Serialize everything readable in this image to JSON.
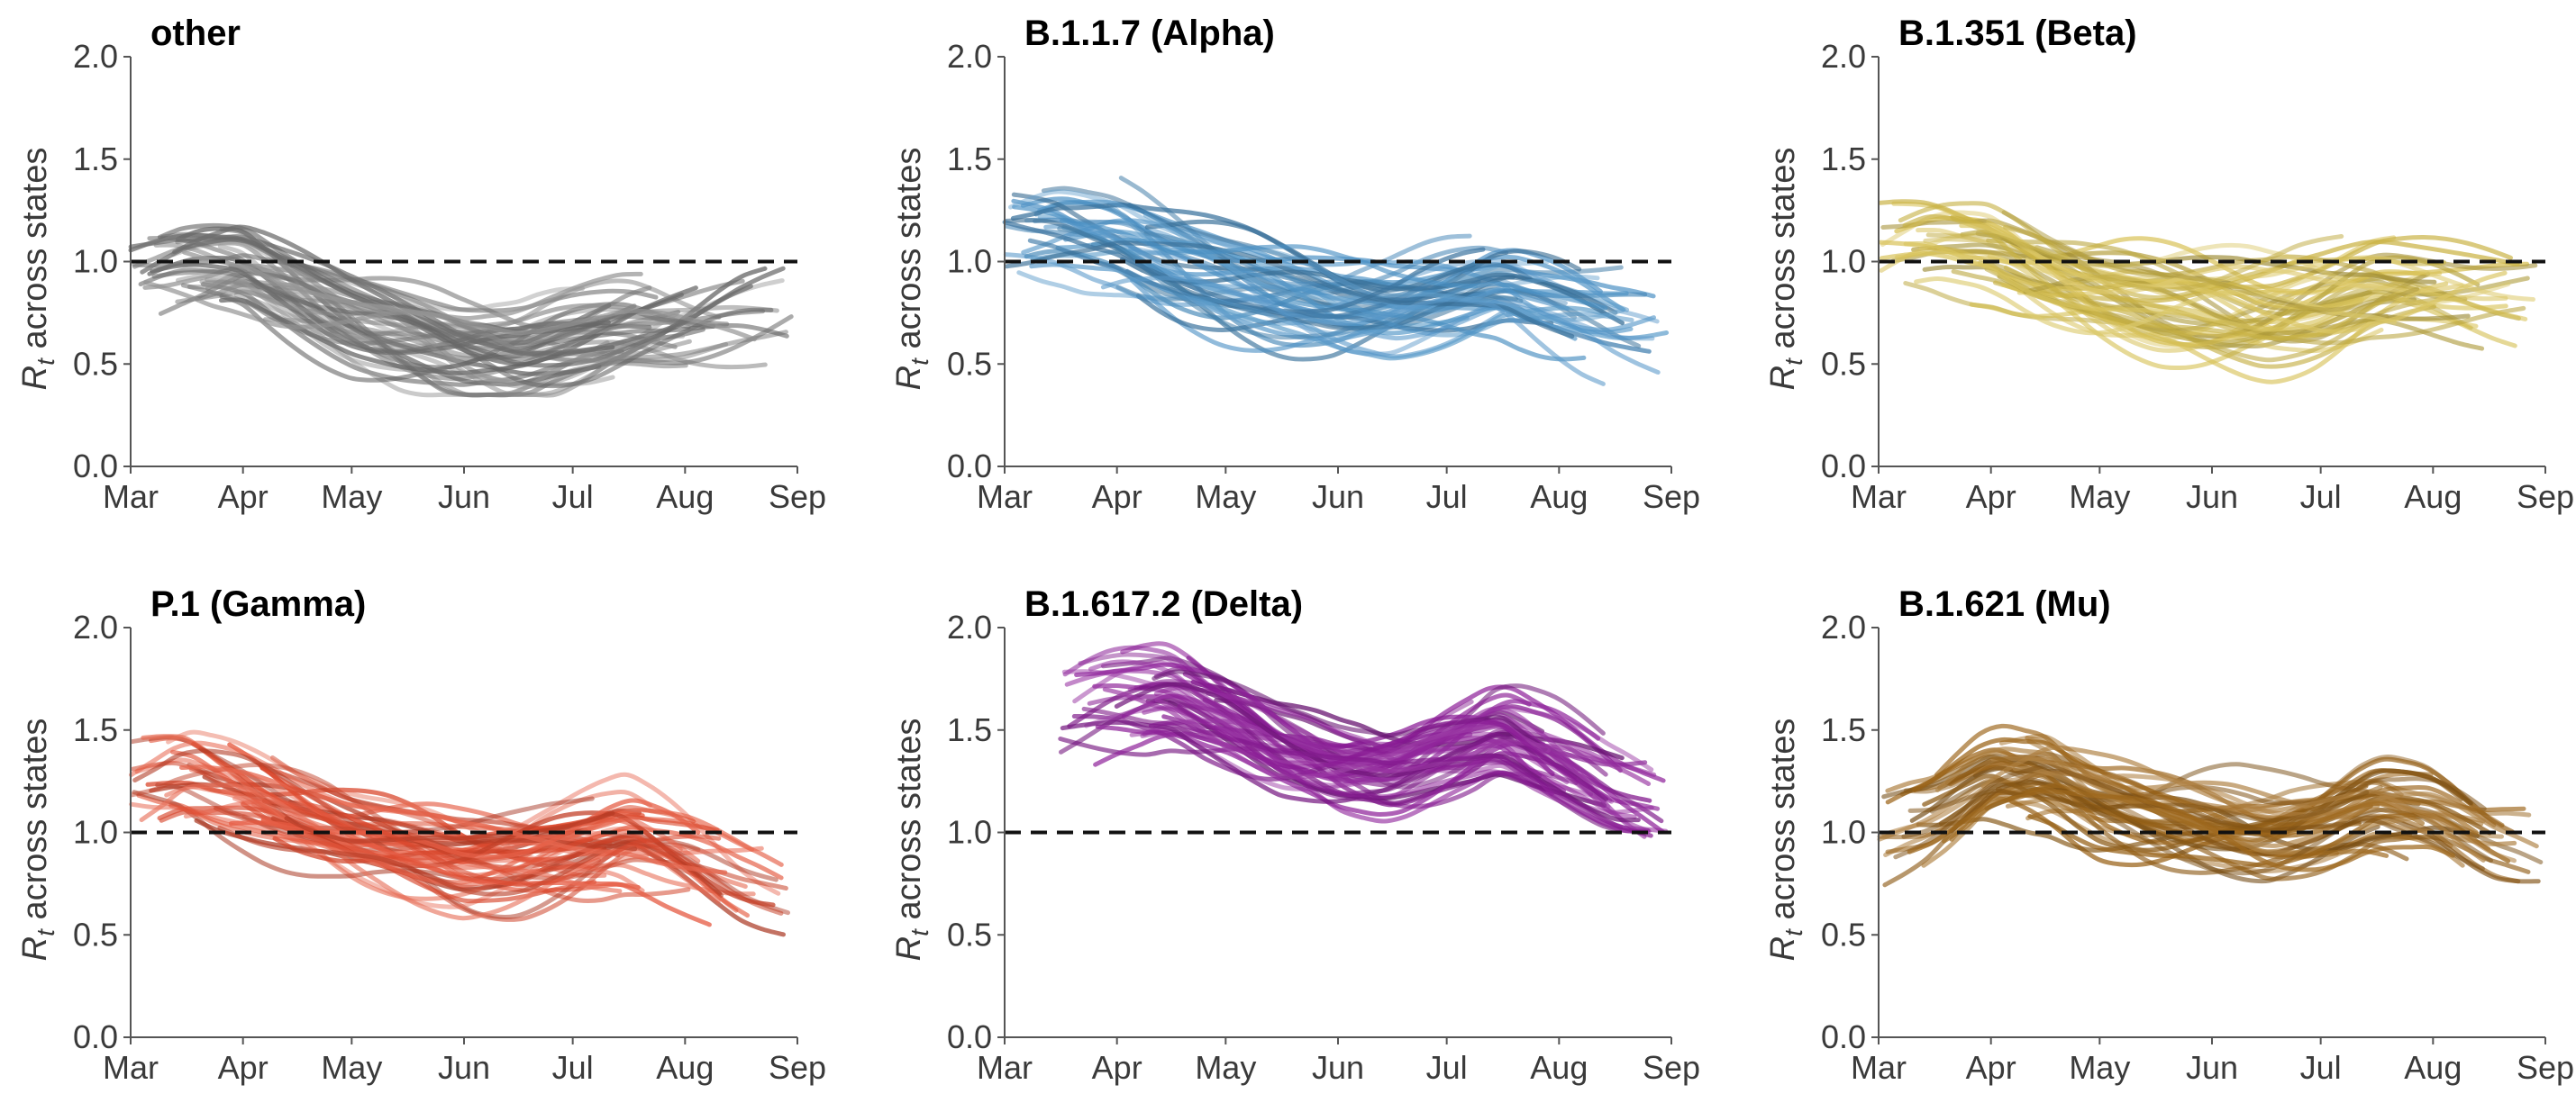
{
  "figure": {
    "ylabel_main": "R",
    "ylabel_sub": "t",
    "ylabel_rest": " across states"
  },
  "chart_data": [
    {
      "type": "line",
      "title": "other",
      "color": "#7f7f7f",
      "xlim": [
        "2021-03-01",
        "2021-09-01"
      ],
      "ylim": [
        0,
        2
      ],
      "x_tick_labels": [
        "Mar",
        "Apr",
        "May",
        "Jun",
        "Jul",
        "Aug",
        "Sep"
      ],
      "y_tick_labels": [
        "0.0",
        "0.5",
        "1.0",
        "1.5",
        "2.0"
      ],
      "reference_line": 1.0,
      "grid": false,
      "legend": "none",
      "dates": [
        "2021-03-01",
        "2021-03-16",
        "2021-04-01",
        "2021-04-16",
        "2021-05-01",
        "2021-05-16",
        "2021-06-01",
        "2021-06-16",
        "2021-07-01",
        "2021-07-16",
        "2021-08-01",
        "2021-08-16",
        "2021-09-01"
      ],
      "series_mean": [
        0.9,
        0.95,
        0.96,
        0.85,
        0.74,
        0.66,
        0.58,
        0.56,
        0.62,
        0.68,
        0.7,
        0.75,
        0.78
      ],
      "line_count": 45
    },
    {
      "type": "line",
      "title": "B.1.1.7 (Alpha)",
      "color": "#4a90c4",
      "xlim": [
        "2021-03-01",
        "2021-09-01"
      ],
      "ylim": [
        0,
        2
      ],
      "x_tick_labels": [
        "Mar",
        "Apr",
        "May",
        "Jun",
        "Jul",
        "Aug",
        "Sep"
      ],
      "y_tick_labels": [
        "0.0",
        "0.5",
        "1.0",
        "1.5",
        "2.0"
      ],
      "reference_line": 1.0,
      "grid": false,
      "legend": "none",
      "dates": [
        "2021-03-01",
        "2021-03-16",
        "2021-04-01",
        "2021-04-16",
        "2021-05-01",
        "2021-05-16",
        "2021-06-01",
        "2021-06-16",
        "2021-07-01",
        "2021-07-16",
        "2021-08-01",
        "2021-08-16",
        "2021-09-01"
      ],
      "series_mean": [
        1.12,
        1.16,
        1.12,
        1.0,
        0.9,
        0.82,
        0.76,
        0.76,
        0.82,
        0.88,
        0.8,
        0.72,
        0.68
      ],
      "line_count": 48
    },
    {
      "type": "line",
      "title": "B.1.351 (Beta)",
      "color": "#d4bc48",
      "xlim": [
        "2021-03-01",
        "2021-09-01"
      ],
      "ylim": [
        0,
        2
      ],
      "x_tick_labels": [
        "Mar",
        "Apr",
        "May",
        "Jun",
        "Jul",
        "Aug",
        "Sep"
      ],
      "y_tick_labels": [
        "0.0",
        "0.5",
        "1.0",
        "1.5",
        "2.0"
      ],
      "reference_line": 1.0,
      "grid": false,
      "legend": "none",
      "dates": [
        "2021-03-01",
        "2021-03-16",
        "2021-04-01",
        "2021-04-16",
        "2021-05-01",
        "2021-05-16",
        "2021-06-01",
        "2021-06-16",
        "2021-07-01",
        "2021-07-16",
        "2021-08-01",
        "2021-08-16",
        "2021-09-01"
      ],
      "series_mean": [
        1.02,
        1.08,
        1.06,
        0.95,
        0.86,
        0.8,
        0.76,
        0.74,
        0.78,
        0.85,
        0.85,
        0.85,
        0.85
      ],
      "line_count": 45
    },
    {
      "type": "line",
      "title": "P.1 (Gamma)",
      "color": "#e24a2e",
      "xlim": [
        "2021-03-01",
        "2021-09-01"
      ],
      "ylim": [
        0,
        2
      ],
      "x_tick_labels": [
        "Mar",
        "Apr",
        "May",
        "Jun",
        "Jul",
        "Aug",
        "Sep"
      ],
      "y_tick_labels": [
        "0.0",
        "0.5",
        "1.0",
        "1.5",
        "2.0"
      ],
      "reference_line": 1.0,
      "grid": false,
      "legend": "none",
      "dates": [
        "2021-03-01",
        "2021-03-16",
        "2021-04-01",
        "2021-04-16",
        "2021-05-01",
        "2021-05-16",
        "2021-06-01",
        "2021-06-16",
        "2021-07-01",
        "2021-07-16",
        "2021-08-01",
        "2021-08-16",
        "2021-09-01"
      ],
      "series_mean": [
        1.25,
        1.3,
        1.2,
        1.08,
        0.98,
        0.92,
        0.86,
        0.86,
        0.9,
        0.96,
        0.88,
        0.78,
        0.72
      ],
      "line_count": 50
    },
    {
      "type": "line",
      "title": "B.1.617.2 (Delta)",
      "color": "#8a1a96",
      "xlim": [
        "2021-03-01",
        "2021-09-01"
      ],
      "ylim": [
        0,
        2
      ],
      "x_tick_labels": [
        "Mar",
        "Apr",
        "May",
        "Jun",
        "Jul",
        "Aug",
        "Sep"
      ],
      "y_tick_labels": [
        "0.0",
        "0.5",
        "1.0",
        "1.5",
        "2.0"
      ],
      "reference_line": 1.0,
      "grid": false,
      "legend": "none",
      "dates": [
        "2021-03-16",
        "2021-04-01",
        "2021-04-16",
        "2021-05-01",
        "2021-05-16",
        "2021-06-01",
        "2021-06-16",
        "2021-07-01",
        "2021-07-16",
        "2021-08-01",
        "2021-08-16",
        "2021-09-01"
      ],
      "series_mean": [
        1.55,
        1.62,
        1.65,
        1.55,
        1.42,
        1.34,
        1.33,
        1.42,
        1.5,
        1.35,
        1.18,
        1.08
      ],
      "line_count": 50
    },
    {
      "type": "line",
      "title": "B.1.621 (Mu)",
      "color": "#9c6418",
      "xlim": [
        "2021-03-01",
        "2021-09-01"
      ],
      "ylim": [
        0,
        2
      ],
      "x_tick_labels": [
        "Mar",
        "Apr",
        "May",
        "Jun",
        "Jul",
        "Aug",
        "Sep"
      ],
      "y_tick_labels": [
        "0.0",
        "0.5",
        "1.0",
        "1.5",
        "2.0"
      ],
      "reference_line": 1.0,
      "grid": false,
      "legend": "none",
      "dates": [
        "2021-03-01",
        "2021-03-16",
        "2021-04-01",
        "2021-04-16",
        "2021-05-01",
        "2021-05-16",
        "2021-06-01",
        "2021-06-16",
        "2021-07-01",
        "2021-07-16",
        "2021-08-01",
        "2021-08-16",
        "2021-09-01"
      ],
      "series_mean": [
        0.95,
        1.05,
        1.25,
        1.25,
        1.12,
        1.05,
        1.02,
        1.0,
        1.05,
        1.12,
        1.05,
        0.9,
        0.83
      ],
      "line_count": 45
    }
  ]
}
